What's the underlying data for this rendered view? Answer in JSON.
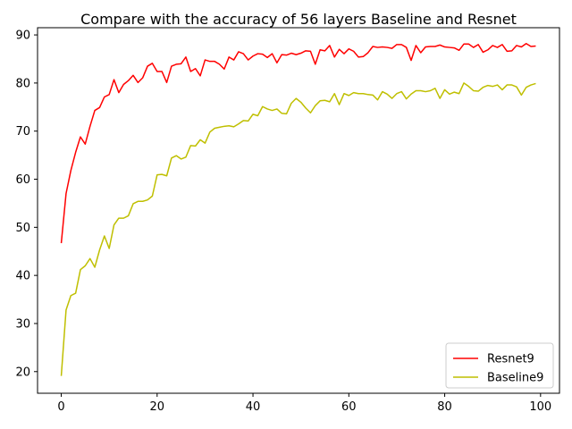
{
  "chart_data": {
    "type": "line",
    "title": "Compare with the accuracy of 56 layers Baseline and Resnet",
    "xlabel": "",
    "ylabel": "",
    "xlim": [
      -4.95,
      103.95
    ],
    "ylim": [
      15.5,
      91.5
    ],
    "xticks": [
      0,
      20,
      40,
      60,
      80,
      100
    ],
    "yticks": [
      20,
      30,
      40,
      50,
      60,
      70,
      80,
      90
    ],
    "grid": false,
    "legend_position": "lower-right",
    "series": [
      {
        "name": "Resnet9",
        "color": "#ff0000",
        "x": [
          0,
          1,
          2,
          3,
          4,
          5,
          6,
          7,
          8,
          9,
          10,
          11,
          12,
          13,
          14,
          15,
          16,
          17,
          18,
          19,
          20,
          21,
          22,
          23,
          24,
          25,
          26,
          27,
          28,
          29,
          30,
          31,
          32,
          33,
          34,
          35,
          36,
          37,
          38,
          39,
          40,
          41,
          42,
          43,
          44,
          45,
          46,
          47,
          48,
          49,
          50,
          51,
          52,
          53,
          54,
          55,
          56,
          57,
          58,
          59,
          60,
          61,
          62,
          63,
          64,
          65,
          66,
          67,
          68,
          69,
          70,
          71,
          72,
          73,
          74,
          75,
          76,
          77,
          78,
          79,
          80,
          81,
          82,
          83,
          84,
          85,
          86,
          87,
          88,
          89,
          90,
          91,
          92,
          93,
          94,
          95,
          96,
          97,
          98,
          99
        ],
        "values": [
          46.7,
          57.0,
          61.8,
          65.6,
          68.8,
          67.3,
          71.0,
          74.3,
          74.9,
          77.1,
          77.6,
          80.7,
          78.0,
          79.7,
          80.5,
          81.6,
          80.1,
          81.1,
          83.5,
          84.1,
          82.4,
          82.4,
          80.1,
          83.5,
          83.9,
          84.0,
          85.4,
          82.4,
          83.0,
          81.5,
          84.8,
          84.5,
          84.5,
          83.9,
          82.9,
          85.4,
          84.8,
          86.5,
          86.1,
          84.8,
          85.6,
          86.1,
          86.0,
          85.3,
          86.1,
          84.2,
          85.9,
          85.8,
          86.2,
          85.9,
          86.2,
          86.7,
          86.6,
          83.9,
          86.9,
          86.7,
          87.8,
          85.4,
          87.0,
          86.1,
          87.1,
          86.6,
          85.4,
          85.5,
          86.3,
          87.6,
          87.4,
          87.5,
          87.4,
          87.2,
          88.0,
          88.0,
          87.4,
          84.7,
          87.8,
          86.3,
          87.5,
          87.6,
          87.6,
          87.9,
          87.5,
          87.4,
          87.3,
          86.8,
          88.1,
          88.1,
          87.4,
          88.0,
          86.4,
          86.9,
          87.8,
          87.4,
          88.0,
          86.6,
          86.7,
          87.8,
          87.5,
          88.2,
          87.6,
          87.7
        ]
      },
      {
        "name": "Baseline9",
        "color": "#bfbf00",
        "x": [
          0,
          1,
          2,
          3,
          4,
          5,
          6,
          7,
          8,
          9,
          10,
          11,
          12,
          13,
          14,
          15,
          16,
          17,
          18,
          19,
          20,
          21,
          22,
          23,
          24,
          25,
          26,
          27,
          28,
          29,
          30,
          31,
          32,
          33,
          34,
          35,
          36,
          37,
          38,
          39,
          40,
          41,
          42,
          43,
          44,
          45,
          46,
          47,
          48,
          49,
          50,
          51,
          52,
          53,
          54,
          55,
          56,
          57,
          58,
          59,
          60,
          61,
          62,
          63,
          64,
          65,
          66,
          67,
          68,
          69,
          70,
          71,
          72,
          73,
          74,
          75,
          76,
          77,
          78,
          79,
          80,
          81,
          82,
          83,
          84,
          85,
          86,
          87,
          88,
          89,
          90,
          91,
          92,
          93,
          94,
          95,
          96,
          97,
          98,
          99
        ],
        "values": [
          19.1,
          32.8,
          35.8,
          36.3,
          41.2,
          42.0,
          43.5,
          41.7,
          45.3,
          48.2,
          45.6,
          50.5,
          51.9,
          51.9,
          52.4,
          54.9,
          55.4,
          55.4,
          55.7,
          56.5,
          60.9,
          61.0,
          60.7,
          64.4,
          64.9,
          64.2,
          64.6,
          67.0,
          66.9,
          68.2,
          67.5,
          69.8,
          70.6,
          70.8,
          71.0,
          71.1,
          70.9,
          71.5,
          72.2,
          72.1,
          73.5,
          73.2,
          75.1,
          74.6,
          74.3,
          74.6,
          73.7,
          73.6,
          75.8,
          76.8,
          76.0,
          74.8,
          73.8,
          75.3,
          76.3,
          76.4,
          76.1,
          77.8,
          75.5,
          77.8,
          77.4,
          78.0,
          77.8,
          77.8,
          77.6,
          77.5,
          76.5,
          78.2,
          77.7,
          76.8,
          77.8,
          78.2,
          76.7,
          77.7,
          78.4,
          78.4,
          78.2,
          78.4,
          78.9,
          76.8,
          78.6,
          77.7,
          78.1,
          77.8,
          80.0,
          79.3,
          78.4,
          78.3,
          79.1,
          79.5,
          79.3,
          79.6,
          78.6,
          79.6,
          79.6,
          79.2,
          77.5,
          79.1,
          79.6,
          79.9
        ]
      }
    ]
  }
}
